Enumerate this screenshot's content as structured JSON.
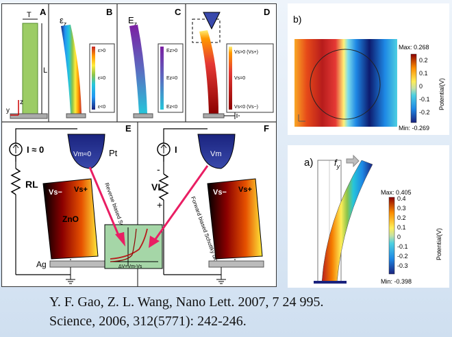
{
  "left_figure": {
    "panels": {
      "a": "A",
      "b": "B",
      "c": "C",
      "d": "D",
      "e": "E",
      "f": "F"
    },
    "a": {
      "t": "T",
      "l": "L",
      "z": "z",
      "y": "y"
    },
    "b": {
      "symbol": "ε",
      "sub": "z",
      "legend": [
        "ε>0",
        "ε=0",
        "ε<0"
      ]
    },
    "c": {
      "symbol": "E",
      "sub": "z",
      "legend": [
        "Ez>0",
        "Ez=0",
        "Ez<0"
      ]
    },
    "d": {
      "legend": [
        "Vs>0 (Vs+)",
        "Vs=0",
        "Vs<0 (Vs−)"
      ]
    },
    "e": {
      "current": "I ≈ 0",
      "pt": "Pt",
      "tip": "Vm≈0",
      "rl": "RL",
      "vs_minus": "Vs−",
      "vs_plus": "Vs+",
      "zno": "ZnO",
      "ag": "Ag",
      "diode": "Reverse biased Schottky diode"
    },
    "f": {
      "current": "I",
      "tip": "Vm",
      "vl": "VL",
      "minus": "-",
      "plus": "+",
      "vs_minus": "Vs−",
      "vs_plus": "Vs+",
      "diode": "Forward biased Schottky diode"
    },
    "iv": {
      "i": "I",
      "dv": "ΔV=Vm-Vs"
    }
  },
  "right_top": {
    "label": "b)",
    "colorbar": {
      "max": "Max: 0.268",
      "min": "Min: -0.269",
      "ticks": [
        "0.2",
        "0.1",
        "0",
        "-0.1",
        "-0.2"
      ],
      "title": "Potential(V)"
    }
  },
  "right_bottom": {
    "label": "a)",
    "force": "f",
    "force_sub": "y",
    "colorbar": {
      "max": "Max: 0.405",
      "min": "Min: -0.398",
      "ticks": [
        "0.4",
        "0.3",
        "0.2",
        "0.1",
        "0",
        "-0.1",
        "-0.2",
        "-0.3"
      ],
      "title": "Potential(V)"
    }
  },
  "citation": {
    "line1": "Y. F. Gao, Z. L. Wang, Nano Lett. 2007, 7 24 995.",
    "line2": "Science, 2006, 312(5771): 242-246."
  },
  "colors": {
    "rainbow": [
      "#1a237e",
      "#2196f3",
      "#00bcd4",
      "#4caf50",
      "#cddc39",
      "#ffeb3b",
      "#ff9800",
      "#f44336",
      "#b71c1c"
    ]
  }
}
